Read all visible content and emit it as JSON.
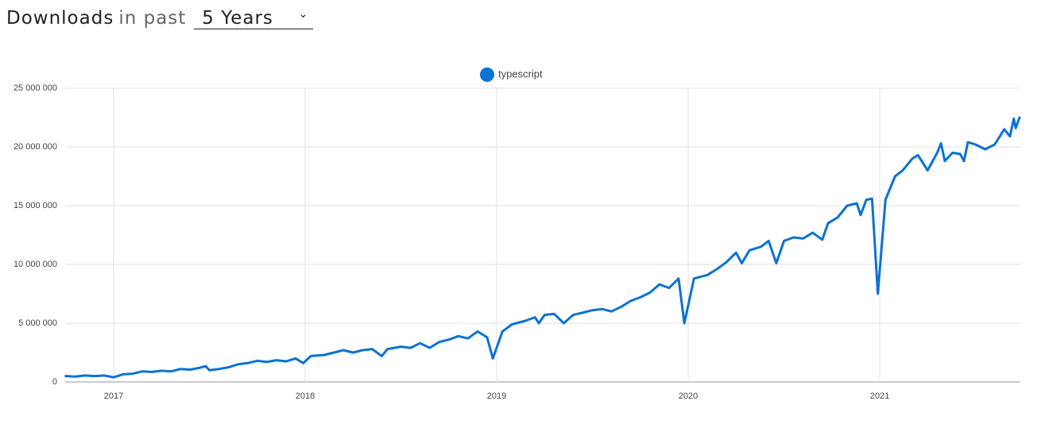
{
  "header": {
    "title": "Downloads",
    "subtitle": "in past",
    "period": "5 Years"
  },
  "chart_data": {
    "type": "line",
    "x": [
      2016.75,
      2016.8,
      2016.85,
      2016.9,
      2016.95,
      2017.0,
      2017.05,
      2017.1,
      2017.15,
      2017.2,
      2017.25,
      2017.3,
      2017.35,
      2017.4,
      2017.45,
      2017.48,
      2017.5,
      2017.55,
      2017.6,
      2017.65,
      2017.7,
      2017.75,
      2017.8,
      2017.85,
      2017.9,
      2017.95,
      2017.99,
      2018.03,
      2018.1,
      2018.15,
      2018.2,
      2018.25,
      2018.3,
      2018.35,
      2018.4,
      2018.43,
      2018.5,
      2018.55,
      2018.6,
      2018.65,
      2018.7,
      2018.75,
      2018.8,
      2018.85,
      2018.9,
      2018.95,
      2018.98,
      2019.03,
      2019.08,
      2019.15,
      2019.2,
      2019.22,
      2019.25,
      2019.3,
      2019.35,
      2019.4,
      2019.45,
      2019.5,
      2019.55,
      2019.6,
      2019.65,
      2019.7,
      2019.75,
      2019.8,
      2019.85,
      2019.9,
      2019.95,
      2019.98,
      2020.03,
      2020.1,
      2020.15,
      2020.2,
      2020.25,
      2020.28,
      2020.32,
      2020.38,
      2020.42,
      2020.46,
      2020.5,
      2020.55,
      2020.6,
      2020.65,
      2020.7,
      2020.73,
      2020.78,
      2020.83,
      2020.88,
      2020.9,
      2020.93,
      2020.96,
      2020.99,
      2021.03,
      2021.08,
      2021.12,
      2021.17,
      2021.2,
      2021.25,
      2021.3,
      2021.32,
      2021.34,
      2021.38,
      2021.42,
      2021.44,
      2021.46,
      2021.5,
      2021.55,
      2021.6,
      2021.65,
      2021.68,
      2021.7,
      2021.71,
      2021.73
    ],
    "series": [
      {
        "name": "typescript",
        "color": "#0b72d3",
        "values": [
          500000,
          450000,
          550000,
          500000,
          550000,
          400000,
          650000,
          700000,
          900000,
          850000,
          950000,
          900000,
          1100000,
          1050000,
          1200000,
          1350000,
          1000000,
          1100000,
          1250000,
          1500000,
          1600000,
          1800000,
          1700000,
          1850000,
          1750000,
          2000000,
          1600000,
          2200000,
          2300000,
          2500000,
          2700000,
          2500000,
          2700000,
          2800000,
          2200000,
          2800000,
          3000000,
          2900000,
          3300000,
          2900000,
          3400000,
          3600000,
          3900000,
          3700000,
          4300000,
          3800000,
          2000000,
          4300000,
          4900000,
          5200000,
          5500000,
          5000000,
          5700000,
          5800000,
          5000000,
          5700000,
          5900000,
          6100000,
          6200000,
          6000000,
          6400000,
          6900000,
          7200000,
          7600000,
          8300000,
          8000000,
          8800000,
          5000000,
          8800000,
          9100000,
          9600000,
          10200000,
          11000000,
          10100000,
          11200000,
          11500000,
          12000000,
          10100000,
          12000000,
          12300000,
          12200000,
          12700000,
          12100000,
          13500000,
          14000000,
          15000000,
          15200000,
          14200000,
          15500000,
          15600000,
          7500000,
          15500000,
          17500000,
          18000000,
          19000000,
          19300000,
          18000000,
          19500000,
          20300000,
          18800000,
          19500000,
          19400000,
          18800000,
          20400000,
          20200000,
          19800000,
          20200000,
          21500000,
          20900000,
          22400000,
          21600000,
          22500000
        ]
      }
    ],
    "xlim": [
      2016.747,
      2021.734
    ],
    "xticks": [
      2017,
      2018,
      2019,
      2020,
      2021
    ],
    "ylim": [
      0,
      25000000
    ],
    "yticks": [
      0,
      {
        "value": 5000000,
        "label": "5 000 000"
      },
      {
        "value": 10000000,
        "label": "10 000 000"
      },
      {
        "value": 15000000,
        "label": "15 000 000"
      },
      {
        "value": 20000000,
        "label": "20 000 000"
      },
      {
        "value": 25000000,
        "label": "25 000 000"
      }
    ],
    "grid": true,
    "legend": "top"
  }
}
